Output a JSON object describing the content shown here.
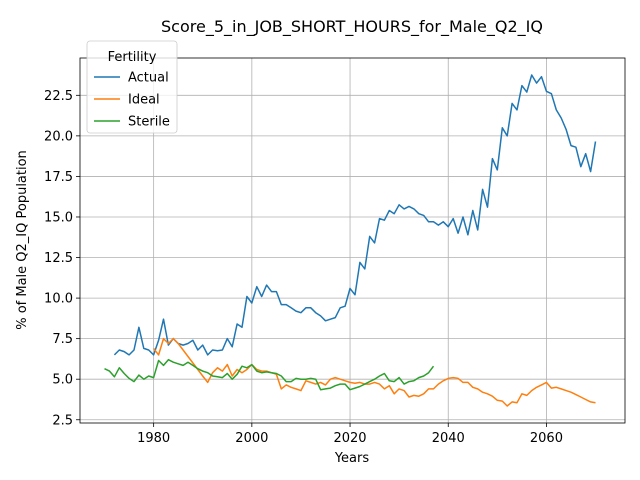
{
  "chart_data": {
    "type": "line",
    "title": "Score_5_in_JOB_SHORT_HOURS_for_Male_Q2_IQ",
    "xlabel": "Years",
    "ylabel": "% of Male Q2_IQ Population",
    "xlim": [
      1965,
      2076
    ],
    "ylim": [
      2.3,
      24.8
    ],
    "xticks": [
      1980,
      2000,
      2020,
      2040,
      2060
    ],
    "yticks": [
      2.5,
      5.0,
      7.5,
      10.0,
      12.5,
      15.0,
      17.5,
      20.0,
      22.5
    ],
    "ytick_labels": [
      "2.5",
      "5.0",
      "7.5",
      "10.0",
      "12.5",
      "15.0",
      "17.5",
      "20.0",
      "22.5"
    ],
    "grid": true,
    "legend_title": "Fertility",
    "legend_position": "top-left",
    "series": [
      {
        "name": "Actual",
        "color": "#1f77b4",
        "x": [
          1972,
          1973,
          1974,
          1975,
          1976,
          1977,
          1978,
          1979,
          1980,
          1981,
          1982,
          1983,
          1984,
          1985,
          1986,
          1987,
          1988,
          1989,
          1990,
          1991,
          1992,
          1993,
          1994,
          1995,
          1996,
          1997,
          1998,
          1999,
          2000,
          2001,
          2002,
          2003,
          2004,
          2005,
          2006,
          2007,
          2008,
          2009,
          2010,
          2011,
          2012,
          2013,
          2014,
          2015,
          2016,
          2017,
          2018,
          2019,
          2020,
          2021,
          2022,
          2023,
          2024,
          2025,
          2026,
          2027,
          2028,
          2029,
          2030,
          2031,
          2032,
          2033,
          2034,
          2035,
          2036,
          2037,
          2038,
          2039,
          2040,
          2041,
          2042,
          2043,
          2044,
          2045,
          2046,
          2047,
          2048,
          2049,
          2050,
          2051,
          2052,
          2053,
          2054,
          2055,
          2056,
          2057,
          2058,
          2059,
          2060,
          2061,
          2062,
          2063,
          2064,
          2065,
          2066,
          2067,
          2068,
          2069,
          2070
        ],
        "values": [
          6.5,
          6.8,
          6.7,
          6.5,
          6.8,
          8.2,
          6.9,
          6.8,
          6.5,
          7.4,
          8.7,
          7.1,
          7.5,
          7.2,
          7.1,
          7.2,
          7.4,
          6.8,
          7.1,
          6.5,
          6.8,
          6.75,
          6.8,
          7.5,
          7.0,
          8.4,
          8.2,
          10.1,
          9.7,
          10.7,
          10.1,
          10.8,
          10.4,
          10.4,
          9.6,
          9.6,
          9.4,
          9.2,
          9.1,
          9.4,
          9.4,
          9.1,
          8.9,
          8.6,
          8.7,
          8.8,
          9.4,
          9.5,
          10.6,
          10.2,
          12.2,
          11.8,
          13.8,
          13.4,
          14.9,
          14.8,
          15.4,
          15.2,
          15.75,
          15.5,
          15.65,
          15.5,
          15.2,
          15.1,
          14.7,
          14.7,
          14.5,
          14.7,
          14.4,
          14.9,
          14.0,
          15.0,
          13.9,
          15.4,
          14.2,
          16.7,
          15.6,
          18.6,
          17.9,
          20.5,
          20.0,
          22.0,
          21.6,
          23.1,
          22.7,
          23.75,
          23.25,
          23.65,
          22.75,
          22.6,
          21.6,
          21.1,
          20.4,
          19.4,
          19.3,
          18.1,
          18.9,
          17.8,
          19.65
        ]
      },
      {
        "name": "Ideal",
        "color": "#ff7f0e",
        "x": [
          1980,
          1981,
          1982,
          1983,
          1984,
          1985,
          1986,
          1987,
          1988,
          1989,
          1990,
          1991,
          1992,
          1993,
          1994,
          1995,
          1996,
          1997,
          1998,
          1999,
          2000,
          2001,
          2002,
          2003,
          2004,
          2005,
          2006,
          2007,
          2008,
          2009,
          2010,
          2011,
          2012,
          2013,
          2014,
          2015,
          2016,
          2017,
          2018,
          2019,
          2020,
          2021,
          2022,
          2023,
          2024,
          2025,
          2026,
          2027,
          2028,
          2029,
          2030,
          2031,
          2032,
          2033,
          2034,
          2035,
          2036,
          2037,
          2038,
          2039,
          2040,
          2041,
          2042,
          2043,
          2044,
          2045,
          2046,
          2047,
          2048,
          2049,
          2050,
          2051,
          2052,
          2053,
          2054,
          2055,
          2056,
          2057,
          2058,
          2059,
          2060,
          2061,
          2062,
          2063,
          2064,
          2065,
          2066,
          2067,
          2068,
          2069,
          2070
        ],
        "values": [
          6.9,
          6.5,
          7.5,
          7.2,
          7.5,
          7.2,
          6.8,
          6.4,
          6.0,
          5.6,
          5.2,
          4.8,
          5.4,
          5.7,
          5.5,
          5.9,
          5.2,
          5.6,
          5.4,
          5.6,
          5.9,
          5.6,
          5.5,
          5.5,
          5.4,
          5.3,
          4.4,
          4.65,
          4.5,
          4.4,
          4.3,
          4.9,
          4.8,
          4.7,
          4.8,
          4.65,
          5.0,
          5.1,
          5.0,
          4.9,
          4.8,
          4.75,
          4.8,
          4.7,
          4.7,
          4.8,
          4.7,
          4.4,
          4.6,
          4.1,
          4.4,
          4.3,
          3.9,
          4.0,
          3.95,
          4.1,
          4.4,
          4.4,
          4.7,
          4.9,
          5.05,
          5.1,
          5.05,
          4.8,
          4.8,
          4.5,
          4.4,
          4.2,
          4.1,
          3.95,
          3.7,
          3.65,
          3.35,
          3.6,
          3.55,
          4.1,
          4.0,
          4.3,
          4.5,
          4.65,
          4.8,
          4.45,
          4.5,
          4.4,
          4.3,
          4.2,
          4.05,
          3.9,
          3.75,
          3.6,
          3.55
        ]
      },
      {
        "name": "Sterile",
        "color": "#2ca02c",
        "x": [
          1970,
          1971,
          1972,
          1973,
          1974,
          1975,
          1976,
          1977,
          1978,
          1979,
          1980,
          1981,
          1982,
          1983,
          1984,
          1985,
          1986,
          1987,
          1988,
          1989,
          1990,
          1991,
          1992,
          1993,
          1994,
          1995,
          1996,
          1997,
          1998,
          1999,
          2000,
          2001,
          2002,
          2003,
          2004,
          2005,
          2006,
          2007,
          2008,
          2009,
          2010,
          2011,
          2012,
          2013,
          2014,
          2015,
          2016,
          2017,
          2018,
          2019,
          2020,
          2021,
          2022,
          2023,
          2024,
          2025,
          2026,
          2027,
          2028,
          2029,
          2030,
          2031,
          2032,
          2033,
          2034,
          2035,
          2036,
          2037
        ],
        "values": [
          5.65,
          5.5,
          5.15,
          5.7,
          5.35,
          5.05,
          4.85,
          5.25,
          5.0,
          5.2,
          5.1,
          6.15,
          5.85,
          6.2,
          6.05,
          5.95,
          5.85,
          6.05,
          5.85,
          5.65,
          5.5,
          5.4,
          5.2,
          5.15,
          5.1,
          5.35,
          5.0,
          5.3,
          5.8,
          5.7,
          5.9,
          5.5,
          5.4,
          5.45,
          5.4,
          5.35,
          5.2,
          4.85,
          4.85,
          5.05,
          5.0,
          5.0,
          5.05,
          5.0,
          4.35,
          4.4,
          4.45,
          4.6,
          4.7,
          4.7,
          4.35,
          4.45,
          4.55,
          4.7,
          4.85,
          5.0,
          5.2,
          5.35,
          4.9,
          4.85,
          5.1,
          4.7,
          4.85,
          4.9,
          5.1,
          5.2,
          5.4,
          5.8
        ]
      }
    ]
  }
}
